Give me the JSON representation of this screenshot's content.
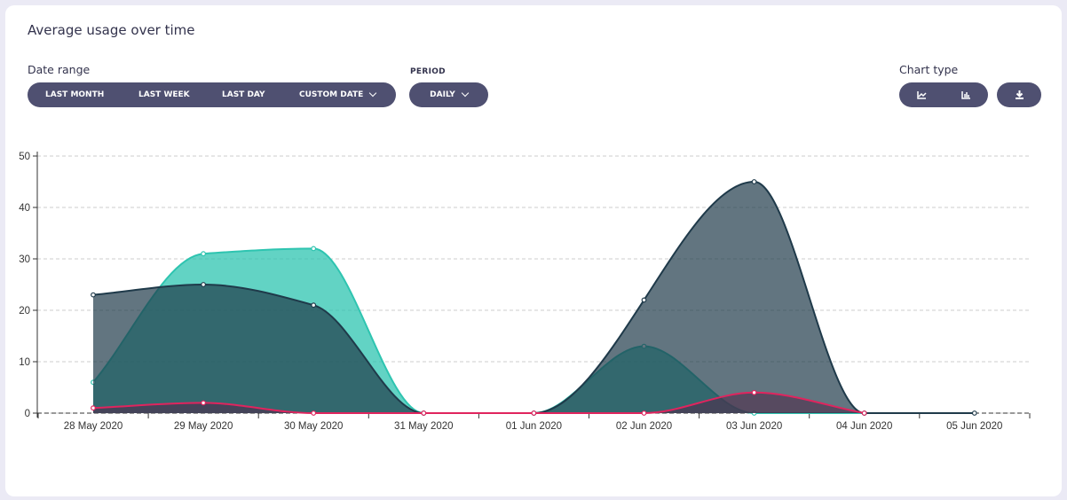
{
  "title": "Average usage over time",
  "date_range": {
    "label": "Date range",
    "options": [
      "LAST MONTH",
      "LAST WEEK",
      "LAST DAY",
      "CUSTOM DATE"
    ]
  },
  "period": {
    "label": "PERIOD",
    "value": "DAILY"
  },
  "chart_type": {
    "label": "Chart type",
    "icons": [
      "line-chart-icon",
      "bar-chart-icon"
    ],
    "download_icon": "download-icon"
  },
  "colors": {
    "button": "#4f5071",
    "series_dark": "#1f3a4a",
    "series_teal": "#2ec4b0",
    "series_red": "#e0245e"
  },
  "chart_data": {
    "type": "area",
    "categories": [
      "28 May 2020",
      "29 May 2020",
      "30 May 2020",
      "31 May 2020",
      "01 Jun 2020",
      "02 Jun 2020",
      "03 Jun 2020",
      "04 Jun 2020",
      "05 Jun 2020"
    ],
    "series": [
      {
        "color": "#2ec4b0",
        "values": [
          6,
          31,
          32,
          0,
          0,
          13,
          0,
          0,
          null
        ]
      },
      {
        "color": "#1f3a4a",
        "values": [
          23,
          25,
          21,
          0,
          0,
          22,
          45,
          0,
          0
        ]
      },
      {
        "color": "#e0245e",
        "values": [
          1,
          2,
          0,
          0,
          0,
          0,
          4,
          0,
          null
        ]
      }
    ],
    "ylim": [
      0,
      50
    ],
    "yticks": [
      0,
      10,
      20,
      30,
      40,
      50
    ],
    "grid": true
  }
}
